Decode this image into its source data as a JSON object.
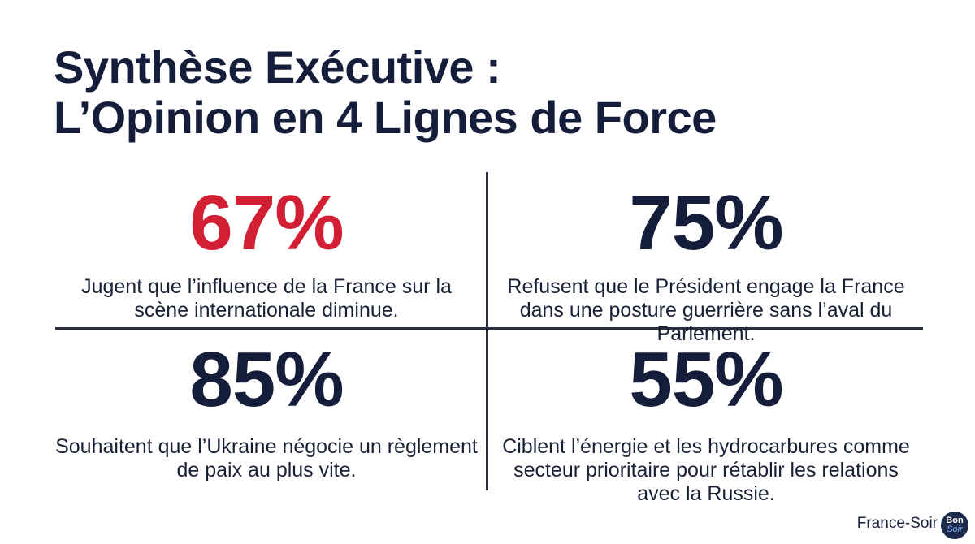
{
  "title": {
    "line1": "Synthèse Exécutive :",
    "line2": "L’Opinion en 4 Lignes de Force"
  },
  "stats": [
    {
      "value": "67%",
      "text": "Jugent que l’influence de la France sur la scène internationale diminue.",
      "color": "#d21f33"
    },
    {
      "value": "75%",
      "text": "Refusent que le Président engage la France dans une posture guerrière sans l’aval du Parlement.",
      "color": "#141d3a"
    },
    {
      "value": "85%",
      "text": "Souhaitent que l’Ukraine négocie un règlement de paix au plus vite.",
      "color": "#141d3a"
    },
    {
      "value": "55%",
      "text": "Ciblent l’énergie et les hydrocarbures comme secteur prioritaire pour rétablir les relations avec la Russie.",
      "color": "#141d3a"
    }
  ],
  "footer": {
    "brand": "France-Soir",
    "logo_line1": "Bon",
    "logo_line2": "Soir"
  }
}
